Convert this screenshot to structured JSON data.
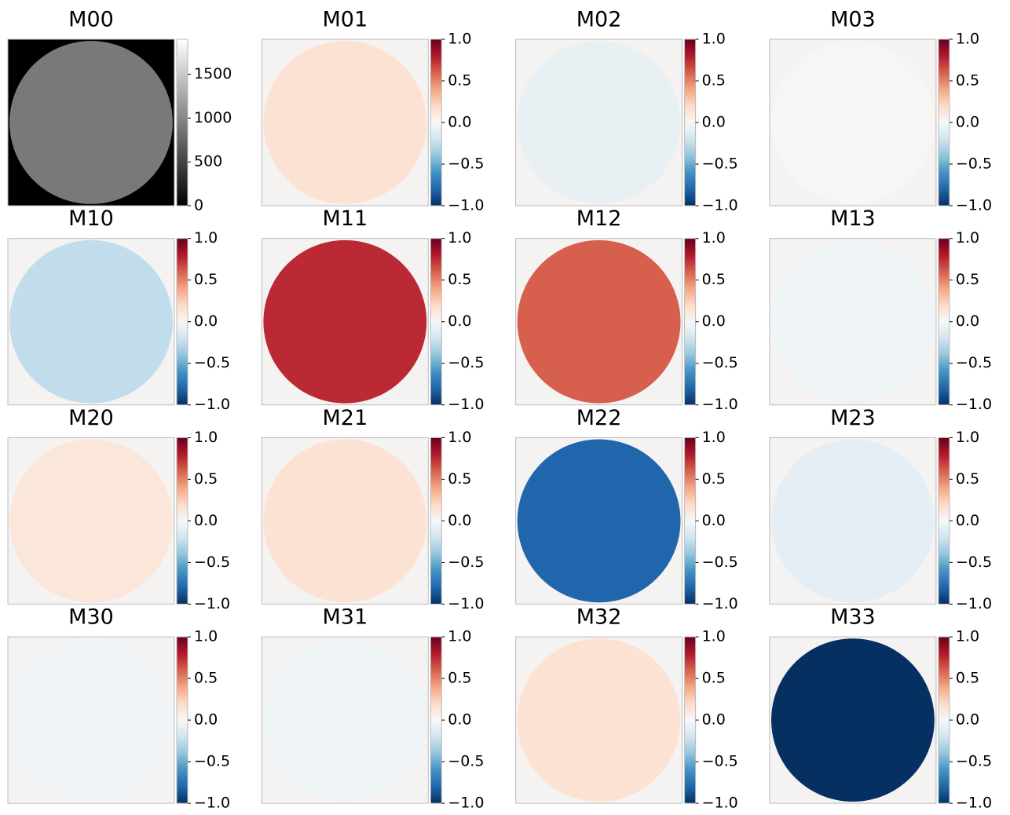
{
  "chart_data": [
    {
      "type": "heatmap",
      "title": "M00",
      "cmap": "gray",
      "value": 900,
      "clim": [
        0,
        1900
      ],
      "cticks": [
        0,
        500,
        1000,
        1500
      ]
    },
    {
      "type": "heatmap",
      "title": "M01",
      "cmap": "RdBu_r",
      "value": 0.15,
      "clim": [
        -1,
        1
      ],
      "cticks": [
        {
          "value": -1,
          "label": "−1.0"
        },
        {
          "value": -0.5,
          "label": "−0.5"
        },
        {
          "value": 0,
          "label": "0.0"
        },
        {
          "value": 0.5,
          "label": "0.5"
        },
        {
          "value": 1,
          "label": "1.0"
        }
      ]
    },
    {
      "type": "heatmap",
      "title": "M02",
      "cmap": "RdBu_r",
      "value": -0.08,
      "clim": [
        -1,
        1
      ],
      "cticks": [
        {
          "value": -1,
          "label": "−1.0"
        },
        {
          "value": -0.5,
          "label": "−0.5"
        },
        {
          "value": 0,
          "label": "0.0"
        },
        {
          "value": 0.5,
          "label": "0.5"
        },
        {
          "value": 1,
          "label": "1.0"
        }
      ]
    },
    {
      "type": "heatmap",
      "title": "M03",
      "cmap": "RdBu_r",
      "value": 0.01,
      "clim": [
        -1,
        1
      ],
      "cticks": [
        {
          "value": -1,
          "label": "−1.0"
        },
        {
          "value": -0.5,
          "label": "−0.5"
        },
        {
          "value": 0,
          "label": "0.0"
        },
        {
          "value": 0.5,
          "label": "0.5"
        },
        {
          "value": 1,
          "label": "1.0"
        }
      ]
    },
    {
      "type": "heatmap",
      "title": "M10",
      "cmap": "RdBu_r",
      "value": -0.25,
      "clim": [
        -1,
        1
      ],
      "cticks": [
        {
          "value": -1,
          "label": "−1.0"
        },
        {
          "value": -0.5,
          "label": "−0.5"
        },
        {
          "value": 0,
          "label": "0.0"
        },
        {
          "value": 0.5,
          "label": "0.5"
        },
        {
          "value": 1,
          "label": "1.0"
        }
      ]
    },
    {
      "type": "heatmap",
      "title": "M11",
      "cmap": "RdBu_r",
      "value": 0.75,
      "clim": [
        -1,
        1
      ],
      "cticks": [
        {
          "value": -1,
          "label": "−1.0"
        },
        {
          "value": -0.5,
          "label": "−0.5"
        },
        {
          "value": 0,
          "label": "0.0"
        },
        {
          "value": 0.5,
          "label": "0.5"
        },
        {
          "value": 1,
          "label": "1.0"
        }
      ]
    },
    {
      "type": "heatmap",
      "title": "M12",
      "cmap": "RdBu_r",
      "value": 0.6,
      "clim": [
        -1,
        1
      ],
      "cticks": [
        {
          "value": -1,
          "label": "−1.0"
        },
        {
          "value": -0.5,
          "label": "−0.5"
        },
        {
          "value": 0,
          "label": "0.0"
        },
        {
          "value": 0.5,
          "label": "0.5"
        },
        {
          "value": 1,
          "label": "1.0"
        }
      ]
    },
    {
      "type": "heatmap",
      "title": "M13",
      "cmap": "RdBu_r",
      "value": -0.05,
      "clim": [
        -1,
        1
      ],
      "cticks": [
        {
          "value": -1,
          "label": "−1.0"
        },
        {
          "value": -0.5,
          "label": "−0.5"
        },
        {
          "value": 0,
          "label": "0.0"
        },
        {
          "value": 0.5,
          "label": "0.5"
        },
        {
          "value": 1,
          "label": "1.0"
        }
      ]
    },
    {
      "type": "heatmap",
      "title": "M20",
      "cmap": "RdBu_r",
      "value": 0.12,
      "clim": [
        -1,
        1
      ],
      "cticks": [
        {
          "value": -1,
          "label": "−1.0"
        },
        {
          "value": -0.5,
          "label": "−0.5"
        },
        {
          "value": 0,
          "label": "0.0"
        },
        {
          "value": 0.5,
          "label": "0.5"
        },
        {
          "value": 1,
          "label": "1.0"
        }
      ]
    },
    {
      "type": "heatmap",
      "title": "M21",
      "cmap": "RdBu_r",
      "value": 0.15,
      "clim": [
        -1,
        1
      ],
      "cticks": [
        {
          "value": -1,
          "label": "−1.0"
        },
        {
          "value": -0.5,
          "label": "−0.5"
        },
        {
          "value": 0,
          "label": "0.0"
        },
        {
          "value": 0.5,
          "label": "0.5"
        },
        {
          "value": 1,
          "label": "1.0"
        }
      ]
    },
    {
      "type": "heatmap",
      "title": "M22",
      "cmap": "RdBu_r",
      "value": -0.8,
      "clim": [
        -1,
        1
      ],
      "cticks": [
        {
          "value": -1,
          "label": "−1.0"
        },
        {
          "value": -0.5,
          "label": "−0.5"
        },
        {
          "value": 0,
          "label": "0.0"
        },
        {
          "value": 0.5,
          "label": "0.5"
        },
        {
          "value": 1,
          "label": "1.0"
        }
      ]
    },
    {
      "type": "heatmap",
      "title": "M23",
      "cmap": "RdBu_r",
      "value": -0.1,
      "clim": [
        -1,
        1
      ],
      "cticks": [
        {
          "value": -1,
          "label": "−1.0"
        },
        {
          "value": -0.5,
          "label": "−0.5"
        },
        {
          "value": 0,
          "label": "0.0"
        },
        {
          "value": 0.5,
          "label": "0.5"
        },
        {
          "value": 1,
          "label": "1.0"
        }
      ]
    },
    {
      "type": "heatmap",
      "title": "M30",
      "cmap": "RdBu_r",
      "value": -0.03,
      "clim": [
        -1,
        1
      ],
      "cticks": [
        {
          "value": -1,
          "label": "−1.0"
        },
        {
          "value": -0.5,
          "label": "−0.5"
        },
        {
          "value": 0,
          "label": "0.0"
        },
        {
          "value": 0.5,
          "label": "0.5"
        },
        {
          "value": 1,
          "label": "1.0"
        }
      ]
    },
    {
      "type": "heatmap",
      "title": "M31",
      "cmap": "RdBu_r",
      "value": -0.05,
      "clim": [
        -1,
        1
      ],
      "cticks": [
        {
          "value": -1,
          "label": "−1.0"
        },
        {
          "value": -0.5,
          "label": "−0.5"
        },
        {
          "value": 0,
          "label": "0.0"
        },
        {
          "value": 0.5,
          "label": "0.5"
        },
        {
          "value": 1,
          "label": "1.0"
        }
      ]
    },
    {
      "type": "heatmap",
      "title": "M32",
      "cmap": "RdBu_r",
      "value": 0.15,
      "clim": [
        -1,
        1
      ],
      "cticks": [
        {
          "value": -1,
          "label": "−1.0"
        },
        {
          "value": -0.5,
          "label": "−0.5"
        },
        {
          "value": 0,
          "label": "0.0"
        },
        {
          "value": 0.5,
          "label": "0.5"
        },
        {
          "value": 1,
          "label": "1.0"
        }
      ]
    },
    {
      "type": "heatmap",
      "title": "M33",
      "cmap": "RdBu_r",
      "value": -1,
      "clim": [
        -1,
        1
      ],
      "cticks": [
        {
          "value": -1,
          "label": "−1.0"
        },
        {
          "value": -0.5,
          "label": "−0.5"
        },
        {
          "value": 0,
          "label": "0.0"
        },
        {
          "value": 0.5,
          "label": "0.5"
        },
        {
          "value": 1,
          "label": "1.0"
        }
      ]
    }
  ]
}
